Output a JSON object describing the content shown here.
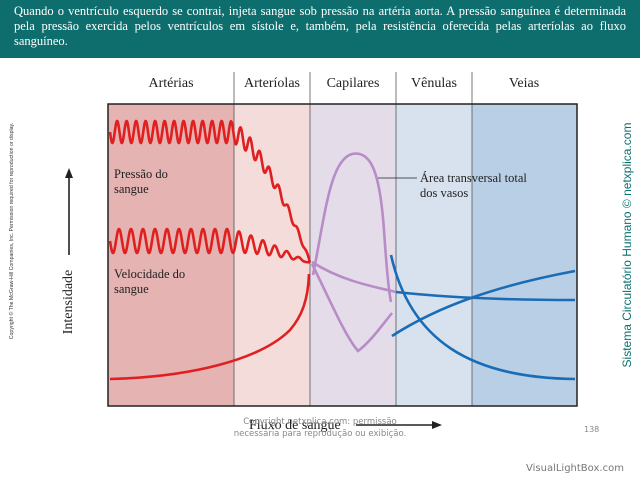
{
  "caption": "Quando o ventrículo esquerdo se contrai, injeta sangue sob pressão na artéria aorta. A pressão sanguínea é determinada pela pressão exercida pelos ventrículos em sístole e, também, pela resistência oferecida pelas arteríolas ao fluxo sanguíneo.",
  "regions": {
    "arterias": "Artérias",
    "arteriolas": "Arteríolas",
    "capilares": "Capilares",
    "venulas": "Vênulas",
    "veias": "Veias"
  },
  "colors": {
    "arterias": "#e6b3b3",
    "arteriolas": "#f3dcda",
    "capilares": "#e5dcea",
    "venulas": "#d8e2ef",
    "veias": "#b9cfe6",
    "red_curve": "#e02020",
    "purple_curve": "#b88cc6",
    "blue_curve": "#1a6cb5",
    "banner": "#0e6e6e"
  },
  "labels": {
    "pressao": [
      "Pressão do",
      "sangue"
    ],
    "velocidade": [
      "Velocidade do",
      "sangue"
    ],
    "area": [
      "Área transversal total",
      "dos vasos"
    ],
    "y_axis": "Intensidade",
    "x_axis": "Fluxo de sangue"
  },
  "side_copyright": "Copyright © The McGraw-Hill Companies, Inc. Permission required for reproduction or display.",
  "side_brand": "Sistema Circulatório Humano © netxplica.com",
  "footer": [
    "Copyright netxplica.com: permissão",
    "necessária para reprodução ou exibição."
  ],
  "page_number": "138",
  "watermark": "VisualLightBox.com"
}
